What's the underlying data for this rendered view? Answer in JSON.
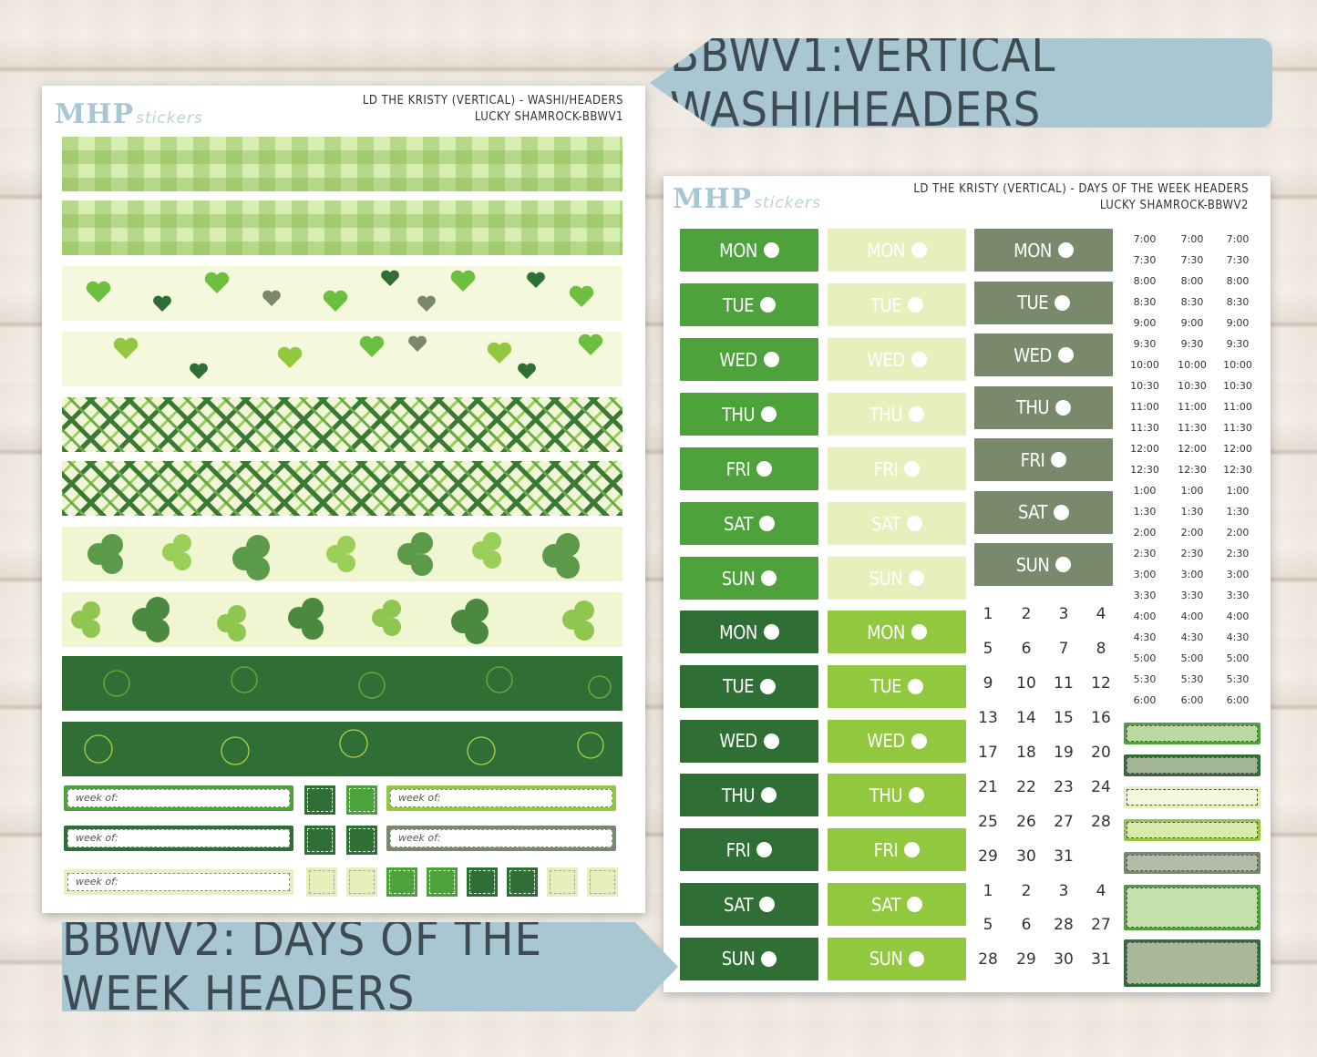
{
  "banners": {
    "top": "BBWV1:VERTICAL WASHI/HEADERS",
    "bottom": "BBWV2: DAYS OF THE WEEK HEADERS"
  },
  "sheet1": {
    "logo": "MHP",
    "logo_sub": "stickers",
    "title_line1": "LD THE KRISTY (VERTICAL) - WASHI/HEADERS",
    "title_line2": "LUCKY SHAMROCK-BBWV1",
    "week_of_label": "week of:"
  },
  "sheet2": {
    "logo": "MHP",
    "logo_sub": "stickers",
    "title_line1": "LD THE KRISTY (VERTICAL) - DAYS OF THE WEEK HEADERS",
    "title_line2": "LUCKY SHAMROCK-BBWV2",
    "days": [
      "MON",
      "TUE",
      "WED",
      "THU",
      "FRI",
      "SAT",
      "SUN"
    ],
    "times": [
      "7:00",
      "7:30",
      "8:00",
      "8:30",
      "9:00",
      "9:30",
      "10:00",
      "10:30",
      "11:00",
      "11:30",
      "12:00",
      "12:30",
      "1:00",
      "1:30",
      "2:00",
      "2:30",
      "3:00",
      "3:30",
      "4:00",
      "4:30",
      "5:00",
      "5:30",
      "6:00"
    ],
    "dates": [
      [
        "1",
        "2",
        "3",
        "4"
      ],
      [
        "5",
        "6",
        "7",
        "8"
      ],
      [
        "9",
        "10",
        "11",
        "12"
      ],
      [
        "13",
        "14",
        "15",
        "16"
      ],
      [
        "17",
        "18",
        "19",
        "20"
      ],
      [
        "21",
        "22",
        "23",
        "24"
      ],
      [
        "25",
        "26",
        "27",
        "28"
      ],
      [
        "29",
        "30",
        "31",
        ""
      ],
      [
        "1",
        "2",
        "3",
        "4"
      ],
      [
        "5",
        "6",
        "28",
        "27"
      ],
      [
        "28",
        "29",
        "30",
        "31"
      ]
    ]
  },
  "colors": {
    "green": "#4ea23c",
    "pale": "#e8efbd",
    "sage": "#798a6c",
    "dark": "#2f6e35",
    "lime": "#92c83e",
    "banner": "#a9c7d3"
  }
}
